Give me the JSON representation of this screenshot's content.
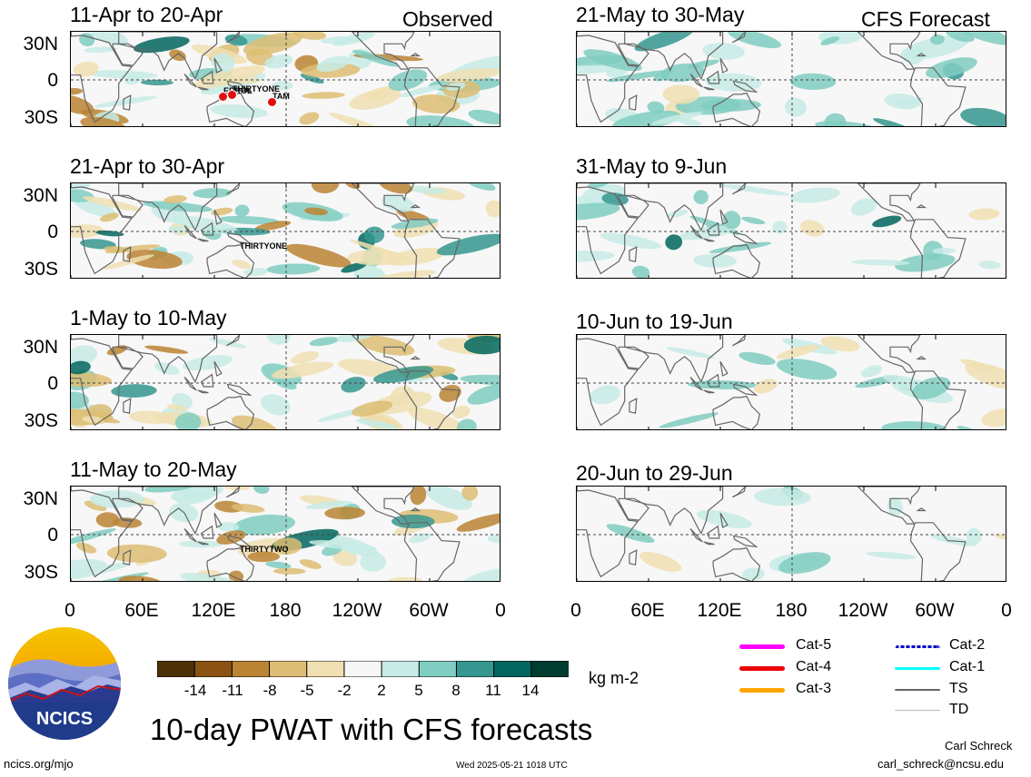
{
  "header": {
    "left_title": "Observed",
    "right_title": "CFS Forecast"
  },
  "panels": {
    "observed": [
      {
        "period": "11-Apr to 20-Apr",
        "storms": [
          "ERROL",
          "THIRTYONE",
          "TAM"
        ]
      },
      {
        "period": "21-Apr to 30-Apr",
        "storms": [
          "THIRTYONE"
        ]
      },
      {
        "period": "1-May to 10-May",
        "storms": []
      },
      {
        "period": "11-May to 20-May",
        "storms": [
          "THIRTYTWO"
        ]
      }
    ],
    "forecast": [
      {
        "period": "21-May to 30-May"
      },
      {
        "period": "31-May to 9-Jun"
      },
      {
        "period": "10-Jun to 19-Jun"
      },
      {
        "period": "20-Jun to 29-Jun"
      }
    ]
  },
  "axes": {
    "y_labels": [
      "30N",
      "0",
      "30S"
    ],
    "x_labels": [
      "0",
      "60E",
      "120E",
      "180",
      "120W",
      "60W",
      "0"
    ]
  },
  "colorbar": {
    "ticks": [
      "-14",
      "-11",
      "-8",
      "-5",
      "-2",
      "2",
      "5",
      "8",
      "11",
      "14"
    ],
    "units": "kg m-2",
    "colors": [
      "#4d3208",
      "#8a5314",
      "#bb8434",
      "#ddbd73",
      "#f0dfb1",
      "#f7f7f7",
      "#c7ebe5",
      "#80cdc1",
      "#35978f",
      "#01665e",
      "#003c30"
    ]
  },
  "legend": [
    {
      "label": "Cat-5",
      "color": "#ff00ff"
    },
    {
      "label": "Cat-4",
      "color": "#ee0000"
    },
    {
      "label": "Cat-3",
      "color": "#ffa500"
    },
    {
      "label": "Cat-2",
      "color": "#0000cc"
    },
    {
      "label": "Cat-1",
      "color": "#00ffff"
    },
    {
      "label": "TS",
      "color": "#666666"
    },
    {
      "label": "TD",
      "color": "#bbbbbb"
    }
  ],
  "logo": {
    "text": "NCICS"
  },
  "footer": {
    "main_title": "10-day PWAT with CFS forecasts",
    "url": "ncics.org/mjo",
    "timestamp": "Wed 2025-05-21 1018 UTC",
    "author": "Carl Schreck",
    "email": "carl_schreck@ncsu.edu"
  }
}
